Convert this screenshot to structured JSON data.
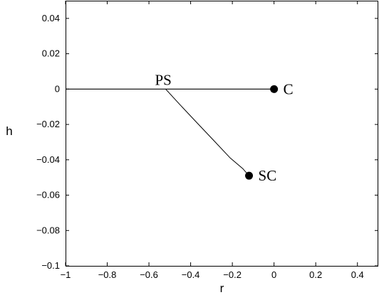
{
  "chart_data": {
    "type": "line",
    "title": "",
    "xlabel": "r",
    "ylabel": "h",
    "xlim": [
      -1,
      0.5
    ],
    "ylim": [
      -0.1,
      0.05
    ],
    "x_ticks": [
      -1,
      -0.8,
      -0.6,
      -0.4,
      -0.2,
      0,
      0.2,
      0.4
    ],
    "x_tick_labels": [
      "−1",
      "−0.8",
      "−0.6",
      "−0.4",
      "−0.2",
      "0",
      "0.2",
      "0.4"
    ],
    "y_ticks": [
      -0.1,
      -0.08,
      -0.06,
      -0.04,
      -0.02,
      0,
      0.02,
      0.04
    ],
    "y_tick_labels": [
      "−0.1",
      "−0.08",
      "−0.06",
      "−0.04",
      "−0.02",
      "0",
      "0.02",
      "0.04"
    ],
    "grid": false,
    "series": [
      {
        "x": [
          -1,
          0
        ],
        "y": [
          0,
          0
        ]
      },
      {
        "x": [
          -0.52,
          -0.45,
          -0.37,
          -0.29,
          -0.21,
          -0.15,
          -0.12
        ],
        "y": [
          0,
          -0.009,
          -0.019,
          -0.029,
          -0.039,
          -0.045,
          -0.049
        ]
      }
    ],
    "points": [
      {
        "label": "C",
        "x": 0,
        "y": 0,
        "marker": "filled-circle"
      },
      {
        "label": "SC",
        "x": -0.12,
        "y": -0.049,
        "marker": "filled-circle"
      }
    ],
    "annotations": [
      {
        "text": "PS",
        "x": -0.52,
        "y": 0
      }
    ]
  }
}
